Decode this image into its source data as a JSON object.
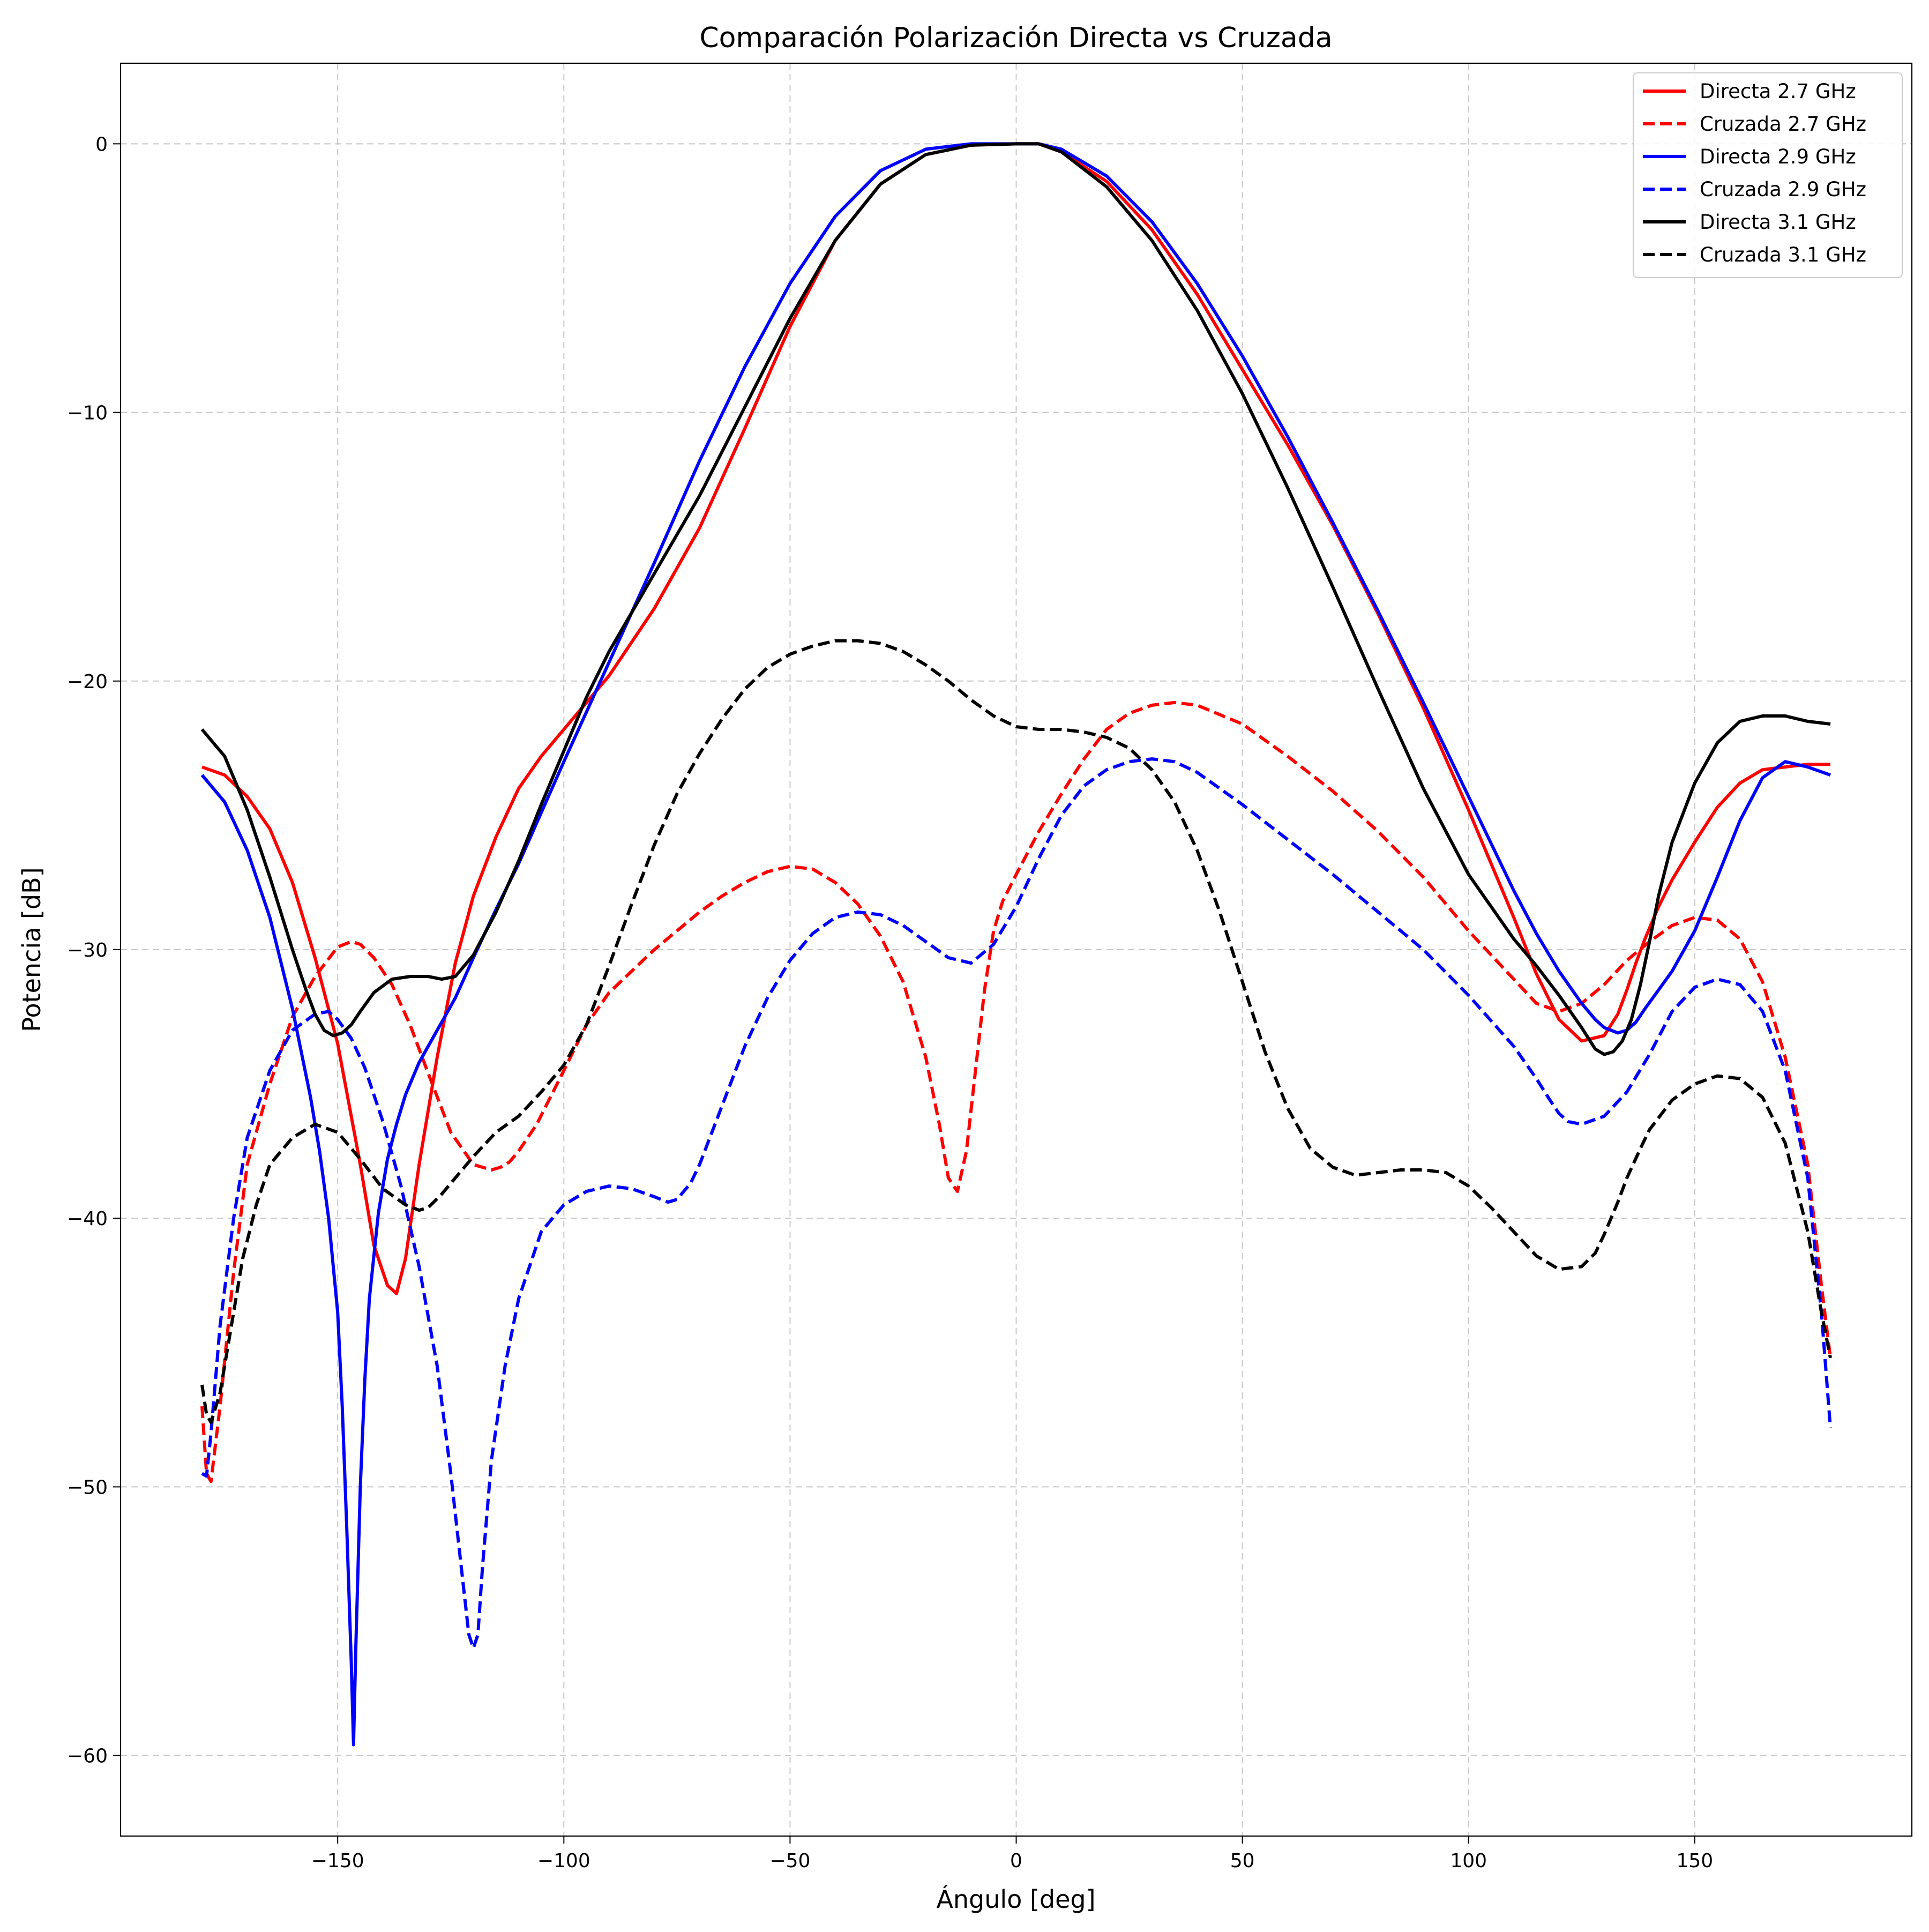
{
  "chart_data": {
    "type": "line",
    "title": "Comparación Polarización Directa vs Cruzada",
    "xlabel": "Ángulo [deg]",
    "ylabel": "Potencia [dB]",
    "xlim": [
      -198,
      198
    ],
    "ylim": [
      -63,
      3
    ],
    "xticks": [
      -150,
      -100,
      -50,
      0,
      50,
      100,
      150
    ],
    "yticks": [
      0,
      -10,
      -20,
      -30,
      -40,
      -50,
      -60
    ],
    "xtick_labels": [
      "−150",
      "−100",
      "−50",
      "0",
      "50",
      "100",
      "150"
    ],
    "ytick_labels": [
      "0",
      "−10",
      "−20",
      "−30",
      "−40",
      "−50",
      "−60"
    ],
    "grid": true,
    "legend_position": "top-right",
    "series": [
      {
        "name": "Directa 2.7 GHz",
        "color": "#ff0000",
        "style": "solid",
        "x": [
          -180,
          -175,
          -170,
          -165,
          -160,
          -155,
          -150,
          -145,
          -142,
          -139,
          -137,
          -135,
          -132,
          -128,
          -124,
          -120,
          -115,
          -110,
          -105,
          -100,
          -90,
          -80,
          -70,
          -60,
          -50,
          -40,
          -30,
          -20,
          -10,
          0,
          5,
          10,
          20,
          30,
          40,
          50,
          60,
          70,
          80,
          90,
          100,
          110,
          115,
          120,
          125,
          130,
          133,
          135,
          137,
          139,
          142,
          145,
          150,
          155,
          160,
          165,
          170,
          175,
          180
        ],
        "y": [
          -23.2,
          -23.5,
          -24.3,
          -25.5,
          -27.5,
          -30.3,
          -33.5,
          -38,
          -41,
          -42.5,
          -42.8,
          -41.5,
          -38,
          -34,
          -30.5,
          -28,
          -25.8,
          -24,
          -22.8,
          -21.8,
          -19.8,
          -17.3,
          -14.3,
          -10.6,
          -6.8,
          -3.6,
          -1.5,
          -0.4,
          -0.05,
          0,
          0,
          -0.3,
          -1.4,
          -3.2,
          -5.6,
          -8.4,
          -11.2,
          -14.2,
          -17.5,
          -21,
          -24.8,
          -28.8,
          -30.9,
          -32.6,
          -33.4,
          -33.2,
          -32.4,
          -31.5,
          -30.5,
          -29.6,
          -28.4,
          -27.4,
          -26,
          -24.7,
          -23.8,
          -23.3,
          -23.2,
          -23.1,
          -23.1
        ]
      },
      {
        "name": "Cruzada 2.7 GHz",
        "color": "#ff0000",
        "style": "dashed",
        "x": [
          -180,
          -179,
          -178,
          -176,
          -173,
          -170,
          -165,
          -160,
          -155,
          -150,
          -147,
          -145,
          -142,
          -138,
          -134,
          -130,
          -125,
          -120,
          -116,
          -114,
          -112,
          -110,
          -106,
          -100,
          -95,
          -90,
          -85,
          -80,
          -75,
          -70,
          -65,
          -60,
          -55,
          -50,
          -45,
          -40,
          -35,
          -30,
          -25,
          -20,
          -17,
          -15,
          -13,
          -11,
          -9,
          -7,
          -5,
          -3,
          0,
          5,
          10,
          15,
          20,
          25,
          30,
          35,
          40,
          50,
          60,
          70,
          80,
          90,
          100,
          110,
          115,
          120,
          125,
          130,
          135,
          140,
          145,
          150,
          155,
          160,
          165,
          170,
          175,
          178,
          180
        ],
        "y": [
          -47,
          -49.5,
          -49.8,
          -47,
          -42,
          -38,
          -35,
          -32.5,
          -31,
          -29.9,
          -29.7,
          -29.8,
          -30.3,
          -31.3,
          -32.8,
          -34.6,
          -36.8,
          -38,
          -38.2,
          -38.1,
          -37.9,
          -37.5,
          -36.5,
          -34.5,
          -32.8,
          -31.6,
          -30.8,
          -30,
          -29.3,
          -28.6,
          -28,
          -27.5,
          -27.1,
          -26.9,
          -27,
          -27.5,
          -28.3,
          -29.5,
          -31.2,
          -34,
          -36.5,
          -38.5,
          -39,
          -37.5,
          -34.5,
          -31.5,
          -29.3,
          -28.2,
          -27.2,
          -25.6,
          -24.2,
          -22.9,
          -21.8,
          -21.2,
          -20.9,
          -20.8,
          -20.9,
          -21.6,
          -22.8,
          -24.1,
          -25.6,
          -27.3,
          -29.3,
          -31.1,
          -32,
          -32.3,
          -32,
          -31.3,
          -30.4,
          -29.7,
          -29.1,
          -28.8,
          -28.9,
          -29.6,
          -31.2,
          -34,
          -38,
          -42.5,
          -45.2
        ]
      },
      {
        "name": "Directa 2.9 GHz",
        "color": "#0000ff",
        "style": "solid",
        "x": [
          -180,
          -175,
          -170,
          -165,
          -160,
          -156,
          -154,
          -152,
          -150,
          -149,
          -148,
          -147,
          -146.5,
          -146,
          -145,
          -144,
          -143,
          -141,
          -139,
          -137,
          -135,
          -132,
          -128,
          -124,
          -120,
          -115,
          -110,
          -105,
          -100,
          -90,
          -80,
          -70,
          -60,
          -50,
          -40,
          -30,
          -20,
          -10,
          0,
          5,
          10,
          20,
          30,
          40,
          50,
          60,
          70,
          80,
          90,
          100,
          110,
          115,
          120,
          125,
          128,
          130,
          133,
          135,
          137,
          139,
          142,
          145,
          150,
          155,
          160,
          165,
          170,
          175,
          180
        ],
        "y": [
          -23.5,
          -24.5,
          -26.3,
          -28.8,
          -32.2,
          -35.5,
          -37.5,
          -40,
          -43.5,
          -47,
          -51.5,
          -56.5,
          -59.6,
          -56,
          -50,
          -46,
          -43,
          -39.8,
          -37.8,
          -36.5,
          -35.4,
          -34.2,
          -33,
          -31.8,
          -30.3,
          -28.5,
          -26.8,
          -24.9,
          -23,
          -19.3,
          -15.6,
          -11.8,
          -8.3,
          -5.2,
          -2.7,
          -1,
          -0.2,
          0,
          0,
          0,
          -0.2,
          -1.2,
          -2.9,
          -5.2,
          -7.9,
          -10.9,
          -14.1,
          -17.4,
          -20.8,
          -24.3,
          -27.8,
          -29.4,
          -30.8,
          -32,
          -32.6,
          -32.9,
          -33.1,
          -33,
          -32.7,
          -32.2,
          -31.5,
          -30.8,
          -29.3,
          -27.3,
          -25.2,
          -23.6,
          -23,
          -23.2,
          -23.5
        ]
      },
      {
        "name": "Cruzada 2.9 GHz",
        "color": "#0000ff",
        "style": "dashed",
        "x": [
          -180,
          -179,
          -178,
          -176,
          -173,
          -170,
          -165,
          -160,
          -155,
          -152,
          -150,
          -147,
          -144,
          -140,
          -136,
          -132,
          -128,
          -125,
          -123,
          -121,
          -120,
          -119,
          -118,
          -116,
          -113,
          -110,
          -105,
          -100,
          -95,
          -90,
          -85,
          -80,
          -77,
          -75,
          -72,
          -70,
          -65,
          -60,
          -55,
          -50,
          -45,
          -40,
          -35,
          -30,
          -25,
          -20,
          -15,
          -10,
          -5,
          0,
          5,
          10,
          15,
          20,
          25,
          30,
          35,
          40,
          50,
          60,
          70,
          80,
          90,
          100,
          110,
          115,
          118,
          120,
          122,
          125,
          130,
          135,
          140,
          145,
          150,
          155,
          160,
          165,
          170,
          175,
          178,
          180
        ],
        "y": [
          -49.5,
          -49.6,
          -48,
          -44,
          -40,
          -37,
          -34.5,
          -33,
          -32.4,
          -32.3,
          -32.6,
          -33.3,
          -34.4,
          -36.4,
          -38.8,
          -41.8,
          -45.5,
          -49.5,
          -52.5,
          -55.5,
          -56,
          -55.5,
          -53,
          -49,
          -45.5,
          -43,
          -40.5,
          -39.5,
          -39,
          -38.8,
          -38.9,
          -39.2,
          -39.4,
          -39.3,
          -38.7,
          -38,
          -35.8,
          -33.6,
          -31.8,
          -30.4,
          -29.4,
          -28.8,
          -28.6,
          -28.7,
          -29.1,
          -29.7,
          -30.3,
          -30.5,
          -29.8,
          -28.4,
          -26.6,
          -25,
          -23.9,
          -23.3,
          -23,
          -22.9,
          -23,
          -23.4,
          -24.6,
          -25.9,
          -27.2,
          -28.6,
          -30,
          -31.7,
          -33.6,
          -34.8,
          -35.6,
          -36.1,
          -36.4,
          -36.5,
          -36.2,
          -35.3,
          -33.9,
          -32.3,
          -31.4,
          -31.1,
          -31.3,
          -32.3,
          -34.5,
          -38.5,
          -43.5,
          -47.8
        ]
      },
      {
        "name": "Directa 3.1 GHz",
        "color": "#000000",
        "style": "solid",
        "x": [
          -180,
          -175,
          -170,
          -165,
          -160,
          -157,
          -155,
          -153,
          -151,
          -149,
          -147,
          -145,
          -142,
          -138,
          -134,
          -130,
          -127,
          -124,
          -120,
          -115,
          -110,
          -105,
          -100,
          -95,
          -90,
          -80,
          -70,
          -60,
          -50,
          -40,
          -30,
          -20,
          -10,
          0,
          5,
          10,
          20,
          30,
          40,
          50,
          60,
          70,
          80,
          90,
          100,
          110,
          115,
          120,
          125,
          128,
          130,
          132,
          134,
          136,
          138,
          140,
          142,
          145,
          150,
          155,
          160,
          165,
          170,
          175,
          180
        ],
        "y": [
          -21.8,
          -22.8,
          -24.8,
          -27.3,
          -30,
          -31.5,
          -32.4,
          -33,
          -33.2,
          -33.1,
          -32.8,
          -32.3,
          -31.6,
          -31.1,
          -31,
          -31,
          -31.1,
          -31,
          -30.2,
          -28.6,
          -26.7,
          -24.6,
          -22.6,
          -20.6,
          -18.9,
          -16,
          -13.1,
          -9.8,
          -6.5,
          -3.6,
          -1.5,
          -0.4,
          -0.05,
          0,
          0,
          -0.3,
          -1.6,
          -3.6,
          -6.2,
          -9.3,
          -12.8,
          -16.5,
          -20.3,
          -24,
          -27.2,
          -29.6,
          -30.6,
          -31.7,
          -32.9,
          -33.7,
          -33.9,
          -33.8,
          -33.4,
          -32.6,
          -31.3,
          -29.7,
          -28,
          -26,
          -23.8,
          -22.3,
          -21.5,
          -21.3,
          -21.3,
          -21.5,
          -21.6
        ]
      },
      {
        "name": "Cruzada 3.1 GHz",
        "color": "#000000",
        "style": "dashed",
        "x": [
          -180,
          -179,
          -178,
          -176,
          -174,
          -171,
          -168,
          -165,
          -160,
          -155,
          -150,
          -145,
          -140,
          -135,
          -132,
          -130,
          -127,
          -124,
          -120,
          -115,
          -110,
          -105,
          -100,
          -95,
          -90,
          -85,
          -80,
          -75,
          -70,
          -65,
          -60,
          -55,
          -50,
          -45,
          -40,
          -35,
          -30,
          -25,
          -20,
          -15,
          -10,
          -5,
          0,
          5,
          10,
          15,
          20,
          25,
          30,
          35,
          40,
          45,
          50,
          55,
          60,
          65,
          70,
          75,
          80,
          85,
          90,
          95,
          100,
          105,
          110,
          115,
          120,
          125,
          128,
          130,
          133,
          135,
          138,
          140,
          145,
          150,
          155,
          160,
          165,
          170,
          175,
          178,
          180
        ],
        "y": [
          -46.2,
          -47.3,
          -47.6,
          -46.5,
          -44.5,
          -41.5,
          -39.5,
          -38,
          -37,
          -36.5,
          -36.8,
          -37.8,
          -38.9,
          -39.5,
          -39.7,
          -39.6,
          -39.1,
          -38.5,
          -37.7,
          -36.8,
          -36.2,
          -35.3,
          -34.3,
          -32.8,
          -30.6,
          -28.3,
          -26.1,
          -24.2,
          -22.7,
          -21.4,
          -20.3,
          -19.5,
          -19,
          -18.7,
          -18.5,
          -18.5,
          -18.6,
          -18.9,
          -19.4,
          -20,
          -20.7,
          -21.3,
          -21.7,
          -21.8,
          -21.8,
          -21.9,
          -22.1,
          -22.5,
          -23.3,
          -24.5,
          -26.3,
          -28.6,
          -31.2,
          -33.8,
          -35.9,
          -37.4,
          -38.1,
          -38.4,
          -38.3,
          -38.2,
          -38.2,
          -38.3,
          -38.8,
          -39.6,
          -40.5,
          -41.4,
          -41.9,
          -41.8,
          -41.3,
          -40.6,
          -39.4,
          -38.5,
          -37.4,
          -36.7,
          -35.6,
          -35,
          -34.7,
          -34.8,
          -35.5,
          -37.2,
          -40.5,
          -43.5,
          -45.2
        ]
      }
    ]
  }
}
